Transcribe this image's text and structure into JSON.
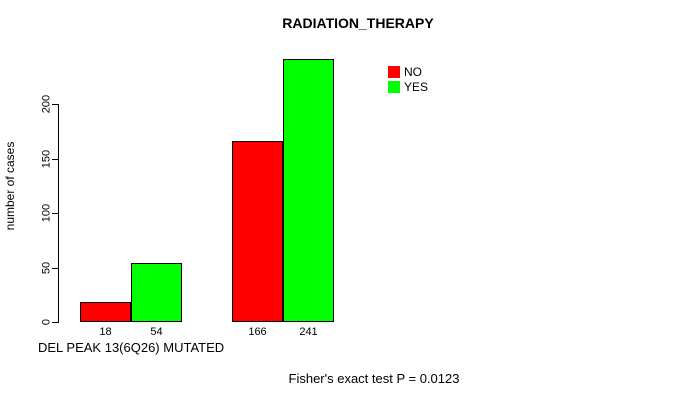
{
  "chart_data": {
    "type": "bar",
    "title": "RADIATION_THERAPY",
    "ylabel": "number of cases",
    "xlabel": "DEL PEAK 13(6Q26) MUTATED",
    "annotation": "Fisher's exact test P = 0.0123",
    "yticks": [
      0,
      50,
      100,
      150,
      200
    ],
    "ylim": [
      0,
      245
    ],
    "grid": false,
    "legend_position": "top-right",
    "legend": [
      {
        "label": "NO",
        "color": "#ff0000"
      },
      {
        "label": "YES",
        "color": "#00ff00"
      }
    ],
    "series": [
      {
        "name": "NO",
        "color": "#ff0000",
        "values": [
          18,
          166
        ]
      },
      {
        "name": "YES",
        "color": "#00ff00",
        "values": [
          54,
          241
        ]
      }
    ],
    "bars": [
      {
        "series": "NO",
        "group": 0,
        "value": 18,
        "label": "18",
        "color": "#ff0000"
      },
      {
        "series": "YES",
        "group": 0,
        "value": 54,
        "label": "54",
        "color": "#00ff00"
      },
      {
        "series": "NO",
        "group": 1,
        "value": 166,
        "label": "166",
        "color": "#ff0000"
      },
      {
        "series": "YES",
        "group": 1,
        "value": 241,
        "label": "241",
        "color": "#00ff00"
      }
    ]
  }
}
